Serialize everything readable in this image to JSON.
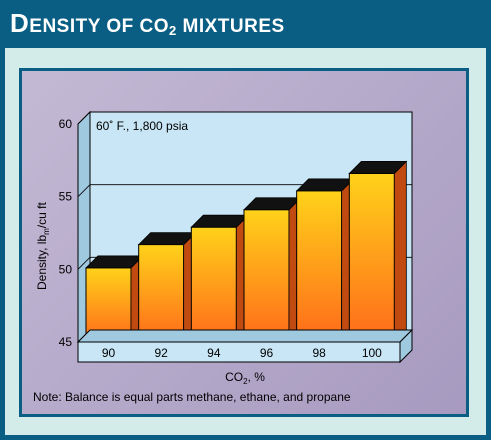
{
  "title": {
    "prefix": "D",
    "main": "ENSITY OF CO",
    "sub": "2",
    "suffix": " MIXTURES"
  },
  "note": "Note: Balance is equal parts methane, ethane, and propane",
  "colors": {
    "frame": "#0a5e84",
    "panel": "#d3ece9",
    "plot_bg": "#c8e6f5",
    "bar_top": "#ffd21a",
    "bar_bottom": "#ff6a1a",
    "bar_cap": "#111111"
  },
  "chart_data": {
    "type": "bar",
    "annotation": "60˚ F., 1,800 psia",
    "categories": [
      "90",
      "92",
      "94",
      "96",
      "98",
      "100"
    ],
    "values": [
      50.1,
      51.7,
      52.9,
      54.1,
      55.4,
      56.6
    ],
    "ylabel": "Density, lbm/cu ft",
    "ylabel_parts": {
      "main": "Density, lb",
      "sub": "m",
      "tail": "/cu ft"
    },
    "xlabel": "CO2, %",
    "xlabel_parts": {
      "main": "CO",
      "sub": "2",
      "tail": ", %"
    },
    "yticks": [
      45,
      50,
      55,
      60
    ],
    "ylim": [
      45,
      60
    ],
    "grid": true
  }
}
